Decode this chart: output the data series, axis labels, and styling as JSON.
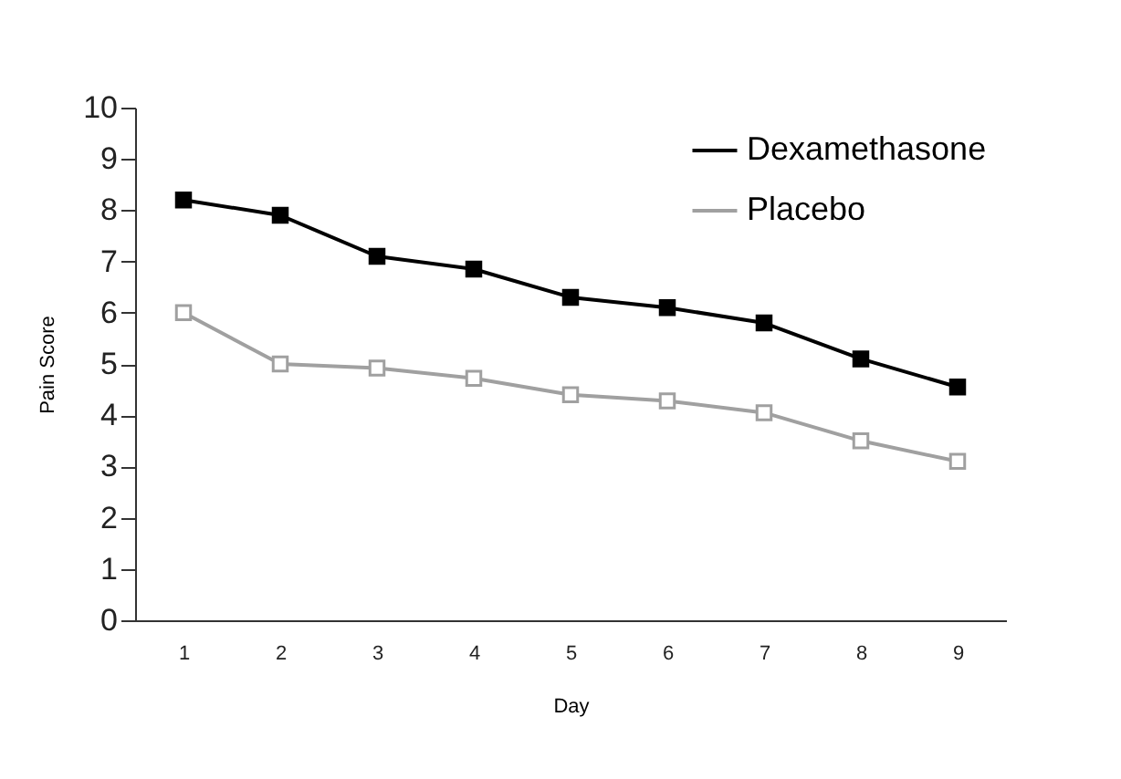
{
  "chart_data": {
    "type": "line",
    "xlabel": "Day",
    "ylabel": "Pain Score",
    "categories": [
      "1",
      "2",
      "3",
      "4",
      "5",
      "6",
      "7",
      "8",
      "9"
    ],
    "ylim": [
      0,
      10
    ],
    "yticks": [
      0,
      1,
      2,
      3,
      4,
      5,
      6,
      7,
      8,
      9,
      10
    ],
    "grid": false,
    "legend": "top right",
    "marker": "square",
    "series": [
      {
        "name": "Dexamethasone",
        "color": "#000000",
        "values": [
          8.2,
          7.9,
          7.1,
          6.85,
          6.3,
          6.1,
          5.8,
          5.1,
          4.55
        ]
      },
      {
        "name": "Placebo",
        "color": "#a0a0a0",
        "values": [
          6.0,
          5.0,
          4.92,
          4.72,
          4.4,
          4.28,
          4.05,
          3.5,
          3.1
        ]
      }
    ]
  }
}
